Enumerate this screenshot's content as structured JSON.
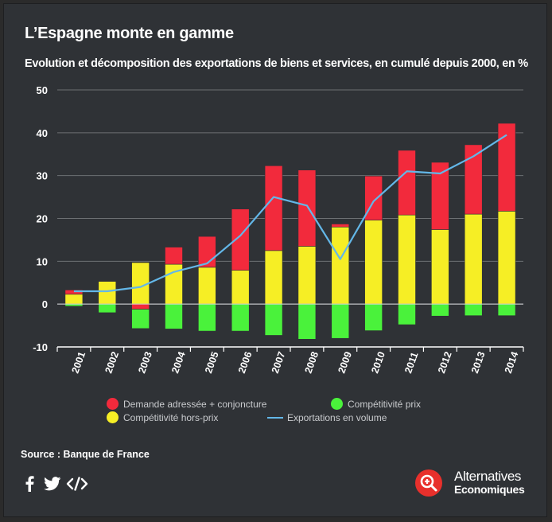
{
  "header": {
    "title": "L’Espagne monte en gamme",
    "subtitle": "Evolution et décomposition des exportations de biens et services, en cumulé depuis 2000, en %"
  },
  "chart_data": {
    "type": "bar",
    "stacked": true,
    "categories": [
      "2001",
      "2002",
      "2003",
      "2004",
      "2005",
      "2006",
      "2007",
      "2008",
      "2009",
      "2010",
      "2011",
      "2012",
      "2013",
      "2014"
    ],
    "series": [
      {
        "name": "Compétitivité hors-prix",
        "kind": "bar",
        "color": "#f6ee25",
        "values": [
          2.3,
          5.3,
          9.7,
          9.3,
          8.6,
          7.9,
          12.5,
          13.5,
          18.0,
          19.6,
          20.8,
          17.4,
          21.0,
          21.7
        ]
      },
      {
        "name": "Demande adressée + conjoncture",
        "kind": "bar",
        "color": "#f22a3c",
        "values": [
          1.0,
          0.0,
          -1.2,
          4.0,
          7.2,
          14.3,
          19.8,
          17.8,
          0.7,
          10.3,
          15.1,
          15.7,
          16.2,
          20.5
        ]
      },
      {
        "name": "Compétitivité prix",
        "kind": "bar",
        "color": "#4af23b",
        "values": [
          -0.5,
          -2.0,
          -4.5,
          -5.8,
          -6.3,
          -6.3,
          -7.3,
          -8.2,
          -8.0,
          -6.2,
          -4.8,
          -2.8,
          -2.7,
          -2.7
        ]
      },
      {
        "name": "Exportations en volume",
        "kind": "line",
        "color": "#63b7e8",
        "values": [
          3.0,
          3.0,
          4.0,
          7.5,
          9.5,
          16.0,
          25.0,
          23.0,
          10.5,
          24.0,
          31.0,
          30.5,
          34.5,
          39.5
        ]
      }
    ],
    "yticks": [
      "50",
      "40",
      "30",
      "20",
      "10",
      "0",
      "-10"
    ],
    "ylim": [
      -10,
      50
    ],
    "grid": true,
    "legend_position": "bottom"
  },
  "legend": {
    "demande": "Demande adressée + conjoncture",
    "prix": "Compétitivité prix",
    "hors_prix": "Compétitivité hors-prix",
    "volume": "Exportations en volume"
  },
  "footer": {
    "source": "Source : Banque de France",
    "brand_line1": "Alternatives",
    "brand_line2": "Economiques"
  },
  "colors": {
    "background": "#2f3236",
    "axis": "#ffffff",
    "grid": "#6d7073"
  },
  "icons": [
    "facebook-icon",
    "twitter-icon",
    "embed-code-icon",
    "magnifier-logo-icon"
  ]
}
